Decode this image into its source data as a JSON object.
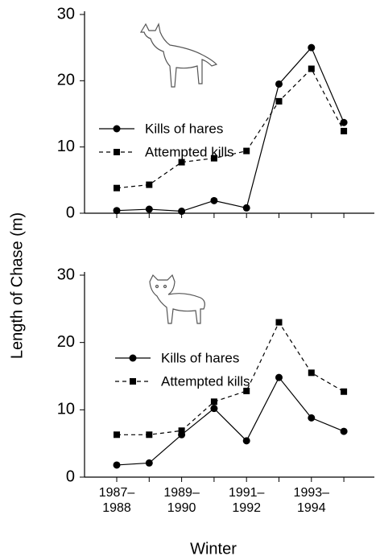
{
  "ylabel": "Length of Chase (m)",
  "xlabel": "Winter",
  "chart_data": [
    {
      "type": "line",
      "ylim": [
        0,
        30
      ],
      "yticks": [
        0,
        10,
        20,
        30
      ],
      "series": [
        {
          "name": "Kills of hares",
          "color": "#000000",
          "marker": "circle",
          "linestyle": "solid",
          "values": [
            0.4,
            0.6,
            0.3,
            1.9,
            0.8,
            19.5,
            25,
            13.7
          ]
        },
        {
          "name": "Attempted kills",
          "color": "#000000",
          "marker": "square",
          "linestyle": "dashed",
          "values": [
            3.8,
            4.3,
            7.7,
            8.3,
            9.4,
            16.9,
            21.8,
            12.4
          ]
        }
      ]
    },
    {
      "type": "line",
      "ylim": [
        0,
        30
      ],
      "yticks": [
        0,
        10,
        20,
        30
      ],
      "categories": [
        "1987–1988",
        null,
        "1989–1990",
        null,
        "1991–1992",
        null,
        "1993–1994",
        null
      ],
      "series": [
        {
          "name": "Kills of hares",
          "color": "#000000",
          "marker": "circle",
          "linestyle": "solid",
          "values": [
            1.8,
            2.1,
            6.3,
            10.2,
            5.4,
            14.8,
            8.8,
            6.8
          ]
        },
        {
          "name": "Attempted kills",
          "color": "#000000",
          "marker": "square",
          "linestyle": "dashed",
          "values": [
            6.3,
            6.3,
            6.9,
            11.2,
            12.8,
            23,
            15.5,
            12.7
          ]
        }
      ]
    }
  ]
}
